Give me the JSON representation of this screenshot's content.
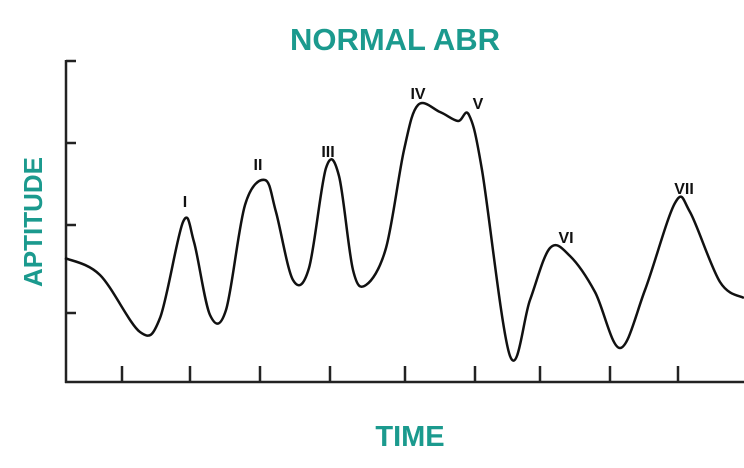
{
  "title": "NORMAL ABR",
  "y_axis_label": "APTITUDE",
  "x_axis_label": "TIME",
  "peaks": [
    {
      "label": "I"
    },
    {
      "label": "II"
    },
    {
      "label": "III"
    },
    {
      "label": "IV"
    },
    {
      "label": "V"
    },
    {
      "label": "VI"
    },
    {
      "label": "VII"
    }
  ]
}
